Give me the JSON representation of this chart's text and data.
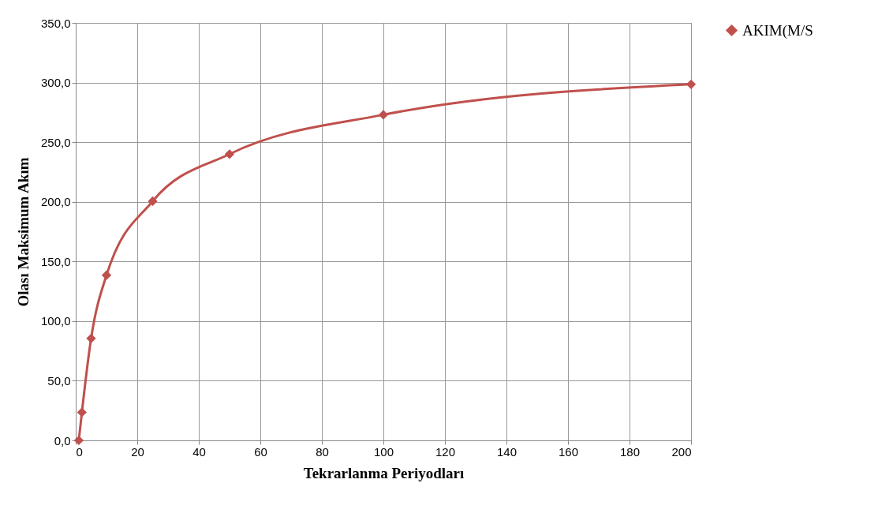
{
  "chart_data": {
    "type": "line",
    "xlabel": "Tekrarlanma Periyodları",
    "ylabel": "Olası Maksimum Akım",
    "x": [
      1,
      2,
      5,
      10,
      25,
      50,
      100,
      200
    ],
    "series": [
      {
        "name": "AKIM(M/S",
        "color": "#c0504d",
        "values": [
          0,
          23.5,
          85.5,
          138.5,
          200.5,
          240,
          273,
          298.5
        ]
      }
    ],
    "xlim": [
      0,
      200
    ],
    "xticks": [
      0,
      20,
      40,
      60,
      80,
      100,
      120,
      140,
      160,
      180,
      200
    ],
    "ylim": [
      0,
      350
    ],
    "yticks": [
      {
        "value": 0,
        "label": "0,0"
      },
      {
        "value": 50,
        "label": "50,0"
      },
      {
        "value": 100,
        "label": "100,0"
      },
      {
        "value": 150,
        "label": "150,0"
      },
      {
        "value": 200,
        "label": "200,0"
      },
      {
        "value": 250,
        "label": "250,0"
      },
      {
        "value": 300,
        "label": "300,0"
      },
      {
        "value": 350,
        "label": "350,0"
      }
    ],
    "grid": true,
    "legend": "right",
    "marker": "diamond",
    "line_style": "solid"
  }
}
